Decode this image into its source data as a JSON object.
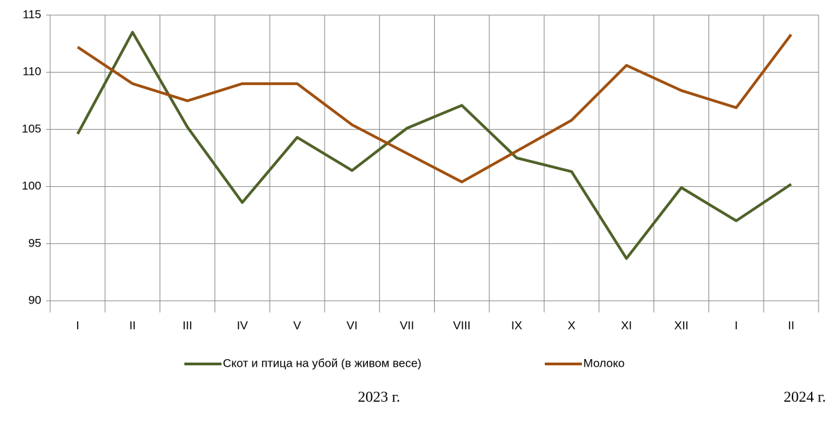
{
  "chart_data": {
    "type": "line",
    "categories": [
      "I",
      "II",
      "III",
      "IV",
      "V",
      "VI",
      "VII",
      "VIII",
      "IX",
      "X",
      "XI",
      "XII",
      "I",
      "II"
    ],
    "series": [
      {
        "name": "Скот и птица на убой (в живом весе)",
        "color": "#4f6228",
        "values": [
          104.6,
          113.5,
          105.2,
          98.6,
          104.3,
          101.4,
          105.1,
          107.1,
          102.5,
          101.3,
          93.7,
          99.9,
          97.0,
          100.2
        ]
      },
      {
        "name": "Молоко",
        "color": "#a0500f",
        "values": [
          112.2,
          109.0,
          107.5,
          109.0,
          109.0,
          105.4,
          102.9,
          100.4,
          103.1,
          105.8,
          110.6,
          108.4,
          106.9,
          113.3
        ]
      }
    ],
    "ylim": [
      90,
      115
    ],
    "yticks": [
      90,
      95,
      100,
      105,
      110,
      115
    ],
    "grid": true,
    "legend": "bottom",
    "annotations": [
      "2023 г.",
      "2024 г."
    ]
  }
}
